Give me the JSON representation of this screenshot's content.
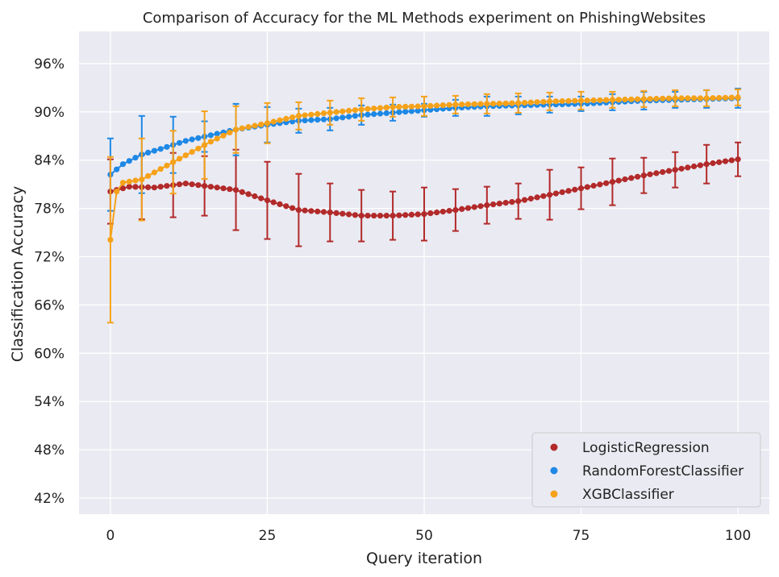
{
  "chart_data": {
    "type": "scatter",
    "title": "Comparison of Accuracy for the ML Methods experiment on PhishingWebsites",
    "xlabel": "Query iteration",
    "ylabel": "Classification Accuracy",
    "xlim": [
      -5,
      105
    ],
    "ylim": [
      0.4,
      1.0
    ],
    "xticks": [
      0,
      25,
      50,
      75,
      100
    ],
    "xtick_labels": [
      "0",
      "25",
      "50",
      "75",
      "100"
    ],
    "yticks": [
      0.42,
      0.48,
      0.54,
      0.6,
      0.66,
      0.72,
      0.78,
      0.84,
      0.9,
      0.96
    ],
    "ytick_labels": [
      "42%",
      "48%",
      "54%",
      "60%",
      "66%",
      "72%",
      "78%",
      "84%",
      "90%",
      "96%"
    ],
    "grid": true,
    "legend_position": "lower-right",
    "errorbar_every": 5,
    "series": [
      {
        "name": "LogisticRegression",
        "color": "#b22a2a",
        "anchors": [
          [
            0,
            0.801
          ],
          [
            3,
            0.807
          ],
          [
            7,
            0.806
          ],
          [
            12,
            0.811
          ],
          [
            16,
            0.807
          ],
          [
            20,
            0.803
          ],
          [
            25,
            0.79
          ],
          [
            30,
            0.778
          ],
          [
            35,
            0.775
          ],
          [
            40,
            0.771
          ],
          [
            45,
            0.771
          ],
          [
            50,
            0.773
          ],
          [
            55,
            0.778
          ],
          [
            60,
            0.784
          ],
          [
            65,
            0.789
          ],
          [
            70,
            0.797
          ],
          [
            75,
            0.805
          ],
          [
            80,
            0.813
          ],
          [
            85,
            0.821
          ],
          [
            90,
            0.828
          ],
          [
            95,
            0.835
          ],
          [
            100,
            0.841
          ]
        ],
        "errors": [
          [
            0,
            0.04
          ],
          [
            5,
            0.04
          ],
          [
            10,
            0.04
          ],
          [
            15,
            0.037
          ],
          [
            20,
            0.05
          ],
          [
            25,
            0.048
          ],
          [
            30,
            0.045
          ],
          [
            35,
            0.036
          ],
          [
            40,
            0.032
          ],
          [
            45,
            0.03
          ],
          [
            50,
            0.033
          ],
          [
            55,
            0.026
          ],
          [
            60,
            0.023
          ],
          [
            65,
            0.022
          ],
          [
            70,
            0.031
          ],
          [
            75,
            0.026
          ],
          [
            80,
            0.029
          ],
          [
            85,
            0.022
          ],
          [
            90,
            0.022
          ],
          [
            95,
            0.024
          ],
          [
            100,
            0.021
          ]
        ]
      },
      {
        "name": "RandomForestClassifier",
        "color": "#1e88e5",
        "anchors": [
          [
            0,
            0.822
          ],
          [
            2,
            0.835
          ],
          [
            5,
            0.847
          ],
          [
            8,
            0.854
          ],
          [
            12,
            0.864
          ],
          [
            16,
            0.871
          ],
          [
            20,
            0.878
          ],
          [
            25,
            0.884
          ],
          [
            30,
            0.889
          ],
          [
            35,
            0.891
          ],
          [
            40,
            0.896
          ],
          [
            45,
            0.899
          ],
          [
            50,
            0.902
          ],
          [
            55,
            0.905
          ],
          [
            60,
            0.907
          ],
          [
            65,
            0.908
          ],
          [
            70,
            0.909
          ],
          [
            75,
            0.91
          ],
          [
            80,
            0.912
          ],
          [
            85,
            0.914
          ],
          [
            90,
            0.915
          ],
          [
            95,
            0.916
          ],
          [
            100,
            0.917
          ]
        ],
        "errors": [
          [
            0,
            0.045
          ],
          [
            5,
            0.048
          ],
          [
            10,
            0.035
          ],
          [
            15,
            0.019
          ],
          [
            20,
            0.032
          ],
          [
            25,
            0.022
          ],
          [
            30,
            0.015
          ],
          [
            35,
            0.014
          ],
          [
            40,
            0.012
          ],
          [
            45,
            0.01
          ],
          [
            50,
            0.008
          ],
          [
            55,
            0.01
          ],
          [
            60,
            0.012
          ],
          [
            65,
            0.011
          ],
          [
            70,
            0.01
          ],
          [
            75,
            0.009
          ],
          [
            80,
            0.01
          ],
          [
            85,
            0.011
          ],
          [
            90,
            0.01
          ],
          [
            95,
            0.011
          ],
          [
            100,
            0.012
          ]
        ]
      },
      {
        "name": "XGBClassifier",
        "color": "#f5a21a",
        "anchors": [
          [
            0,
            0.741
          ],
          [
            1,
            0.801
          ],
          [
            2,
            0.812
          ],
          [
            5,
            0.816
          ],
          [
            8,
            0.829
          ],
          [
            12,
            0.846
          ],
          [
            16,
            0.863
          ],
          [
            20,
            0.878
          ],
          [
            25,
            0.886
          ],
          [
            30,
            0.895
          ],
          [
            35,
            0.899
          ],
          [
            40,
            0.903
          ],
          [
            45,
            0.906
          ],
          [
            50,
            0.907
          ],
          [
            55,
            0.909
          ],
          [
            60,
            0.91
          ],
          [
            65,
            0.911
          ],
          [
            70,
            0.913
          ],
          [
            75,
            0.914
          ],
          [
            80,
            0.915
          ],
          [
            85,
            0.916
          ],
          [
            90,
            0.917
          ],
          [
            95,
            0.917
          ],
          [
            100,
            0.918
          ]
        ],
        "errors": [
          [
            0,
            0.103
          ],
          [
            5,
            0.051
          ],
          [
            10,
            0.039
          ],
          [
            15,
            0.042
          ],
          [
            20,
            0.029
          ],
          [
            25,
            0.025
          ],
          [
            30,
            0.017
          ],
          [
            35,
            0.015
          ],
          [
            40,
            0.014
          ],
          [
            45,
            0.012
          ],
          [
            50,
            0.012
          ],
          [
            55,
            0.011
          ],
          [
            60,
            0.012
          ],
          [
            65,
            0.012
          ],
          [
            70,
            0.011
          ],
          [
            75,
            0.011
          ],
          [
            80,
            0.01
          ],
          [
            85,
            0.01
          ],
          [
            90,
            0.01
          ],
          [
            95,
            0.01
          ],
          [
            100,
            0.01
          ]
        ]
      }
    ]
  }
}
